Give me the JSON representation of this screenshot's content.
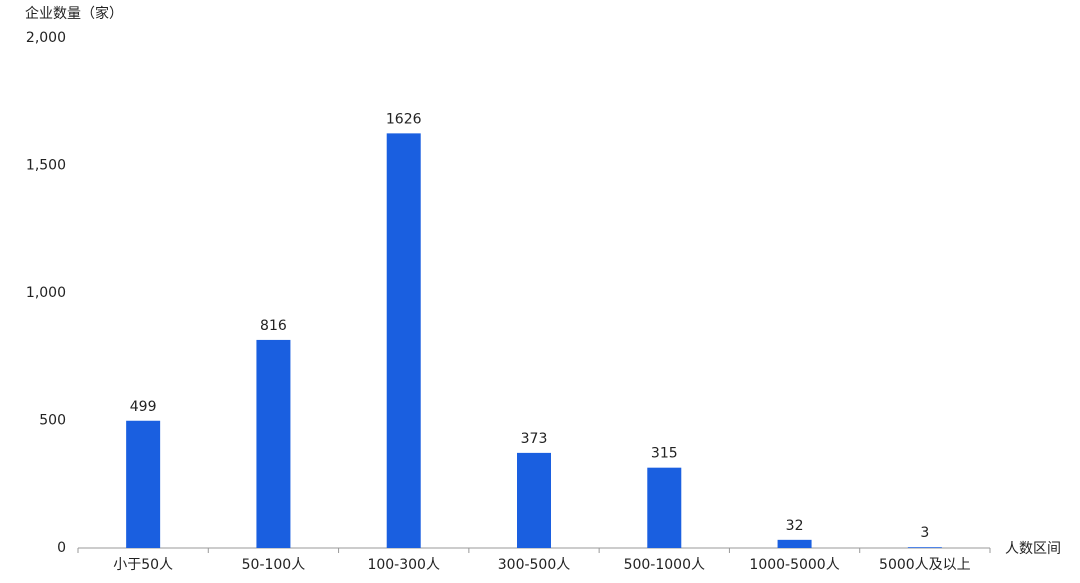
{
  "chart_data": {
    "type": "bar",
    "y_label": "企业数量（家）",
    "x_label": "人数区间",
    "categories": [
      "小于50人",
      "50-100人",
      "100-300人",
      "300-500人",
      "500-1000人",
      "1000-5000人",
      "5000人及以上"
    ],
    "values": [
      499,
      816,
      1626,
      373,
      315,
      32,
      3
    ],
    "color": "#1a5fe0",
    "ylim": [
      0,
      2000
    ],
    "yticks": [
      0,
      500,
      {
        "value": 1000,
        "label": "1,000"
      },
      {
        "value": 1500,
        "label": "1,500"
      },
      {
        "value": 2000,
        "label": "2,000"
      }
    ],
    "grid": false
  }
}
